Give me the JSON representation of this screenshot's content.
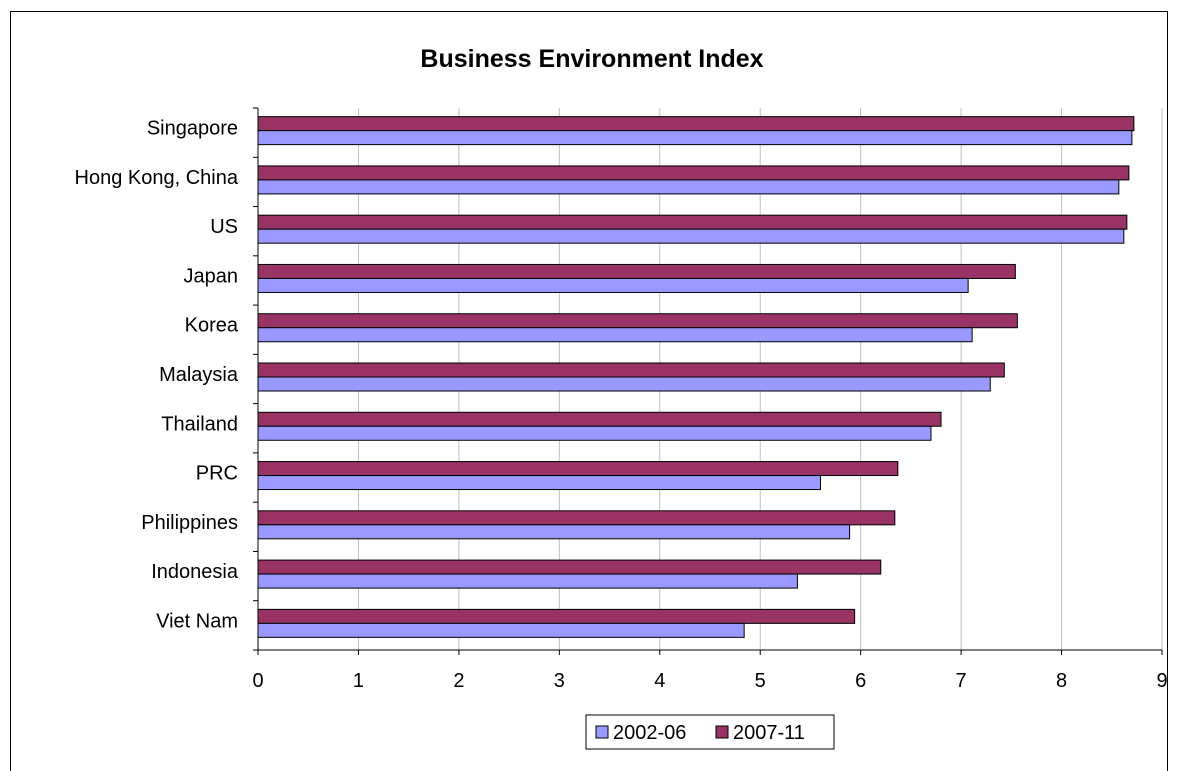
{
  "chart_data": {
    "type": "bar",
    "orientation": "horizontal",
    "title": "Business Environment Index",
    "categories": [
      "Singapore",
      "Hong Kong, China",
      "US",
      "Japan",
      "Korea",
      "Malaysia",
      "Thailand",
      "PRC",
      "Philippines",
      "Indonesia",
      "Viet Nam"
    ],
    "series": [
      {
        "name": "2002-06",
        "color": "#9999ff",
        "values": [
          8.7,
          8.57,
          8.62,
          7.07,
          7.11,
          7.29,
          6.7,
          5.6,
          5.89,
          5.37,
          4.84
        ]
      },
      {
        "name": "2007-11",
        "color": "#993366",
        "values": [
          8.72,
          8.67,
          8.65,
          7.54,
          7.56,
          7.43,
          6.8,
          6.37,
          6.34,
          6.2,
          5.94
        ]
      }
    ],
    "xlim": [
      0,
      9
    ],
    "xticks": [
      "0",
      "1",
      "2",
      "3",
      "4",
      "5",
      "6",
      "7",
      "8",
      "9"
    ],
    "grid": true,
    "legend_position": "bottom"
  }
}
